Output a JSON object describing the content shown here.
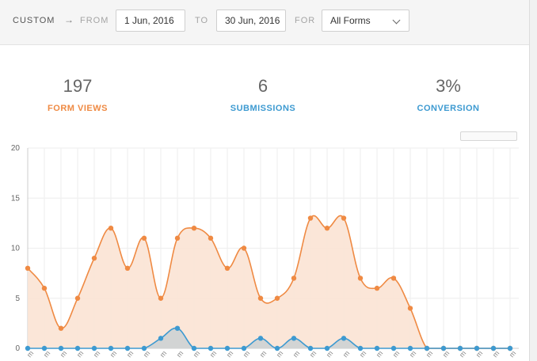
{
  "filter_bar": {
    "range_label": "CUSTOM",
    "arrow": "→",
    "from_label": "FROM",
    "from_value": "1 Jun, 2016",
    "to_label": "TO",
    "to_value": "30 Jun, 2016",
    "for_label": "FOR",
    "form_select": "All Forms"
  },
  "stats": [
    {
      "value": "197",
      "label": "FORM VIEWS",
      "color": "#ef8a43"
    },
    {
      "value": "6",
      "label": "SUBMISSIONS",
      "color": "#3d9ad1"
    },
    {
      "value": "3%",
      "label": "CONVERSION",
      "color": "#3d9ad1"
    }
  ],
  "chart_data": {
    "type": "area",
    "ylim": [
      0,
      20
    ],
    "yticks": [
      "0",
      "5",
      "10",
      "15",
      "20"
    ],
    "xtick_label": "m",
    "x": [
      1,
      2,
      3,
      4,
      5,
      6,
      7,
      8,
      9,
      10,
      11,
      12,
      13,
      14,
      15,
      16,
      17,
      18,
      19,
      20,
      21,
      22,
      23,
      24,
      25,
      26,
      27,
      28,
      29,
      30
    ],
    "grid": true,
    "series": [
      {
        "color": "#ef8a43",
        "fill": "#fbe3d4",
        "values": [
          8,
          6,
          2,
          5,
          9,
          12,
          8,
          11,
          5,
          11,
          12,
          11,
          8,
          10,
          5,
          5,
          7,
          13,
          12,
          13,
          7,
          6,
          7,
          4,
          0,
          0,
          0,
          0,
          0,
          0
        ]
      },
      {
        "color": "#3d9ad1",
        "fill": "#cdd1d4",
        "values": [
          0,
          0,
          0,
          0,
          0,
          0,
          0,
          0,
          1,
          2,
          0,
          0,
          0,
          0,
          1,
          0,
          1,
          0,
          0,
          1,
          0,
          0,
          0,
          0,
          0,
          0,
          0,
          0,
          0,
          0
        ]
      }
    ]
  }
}
